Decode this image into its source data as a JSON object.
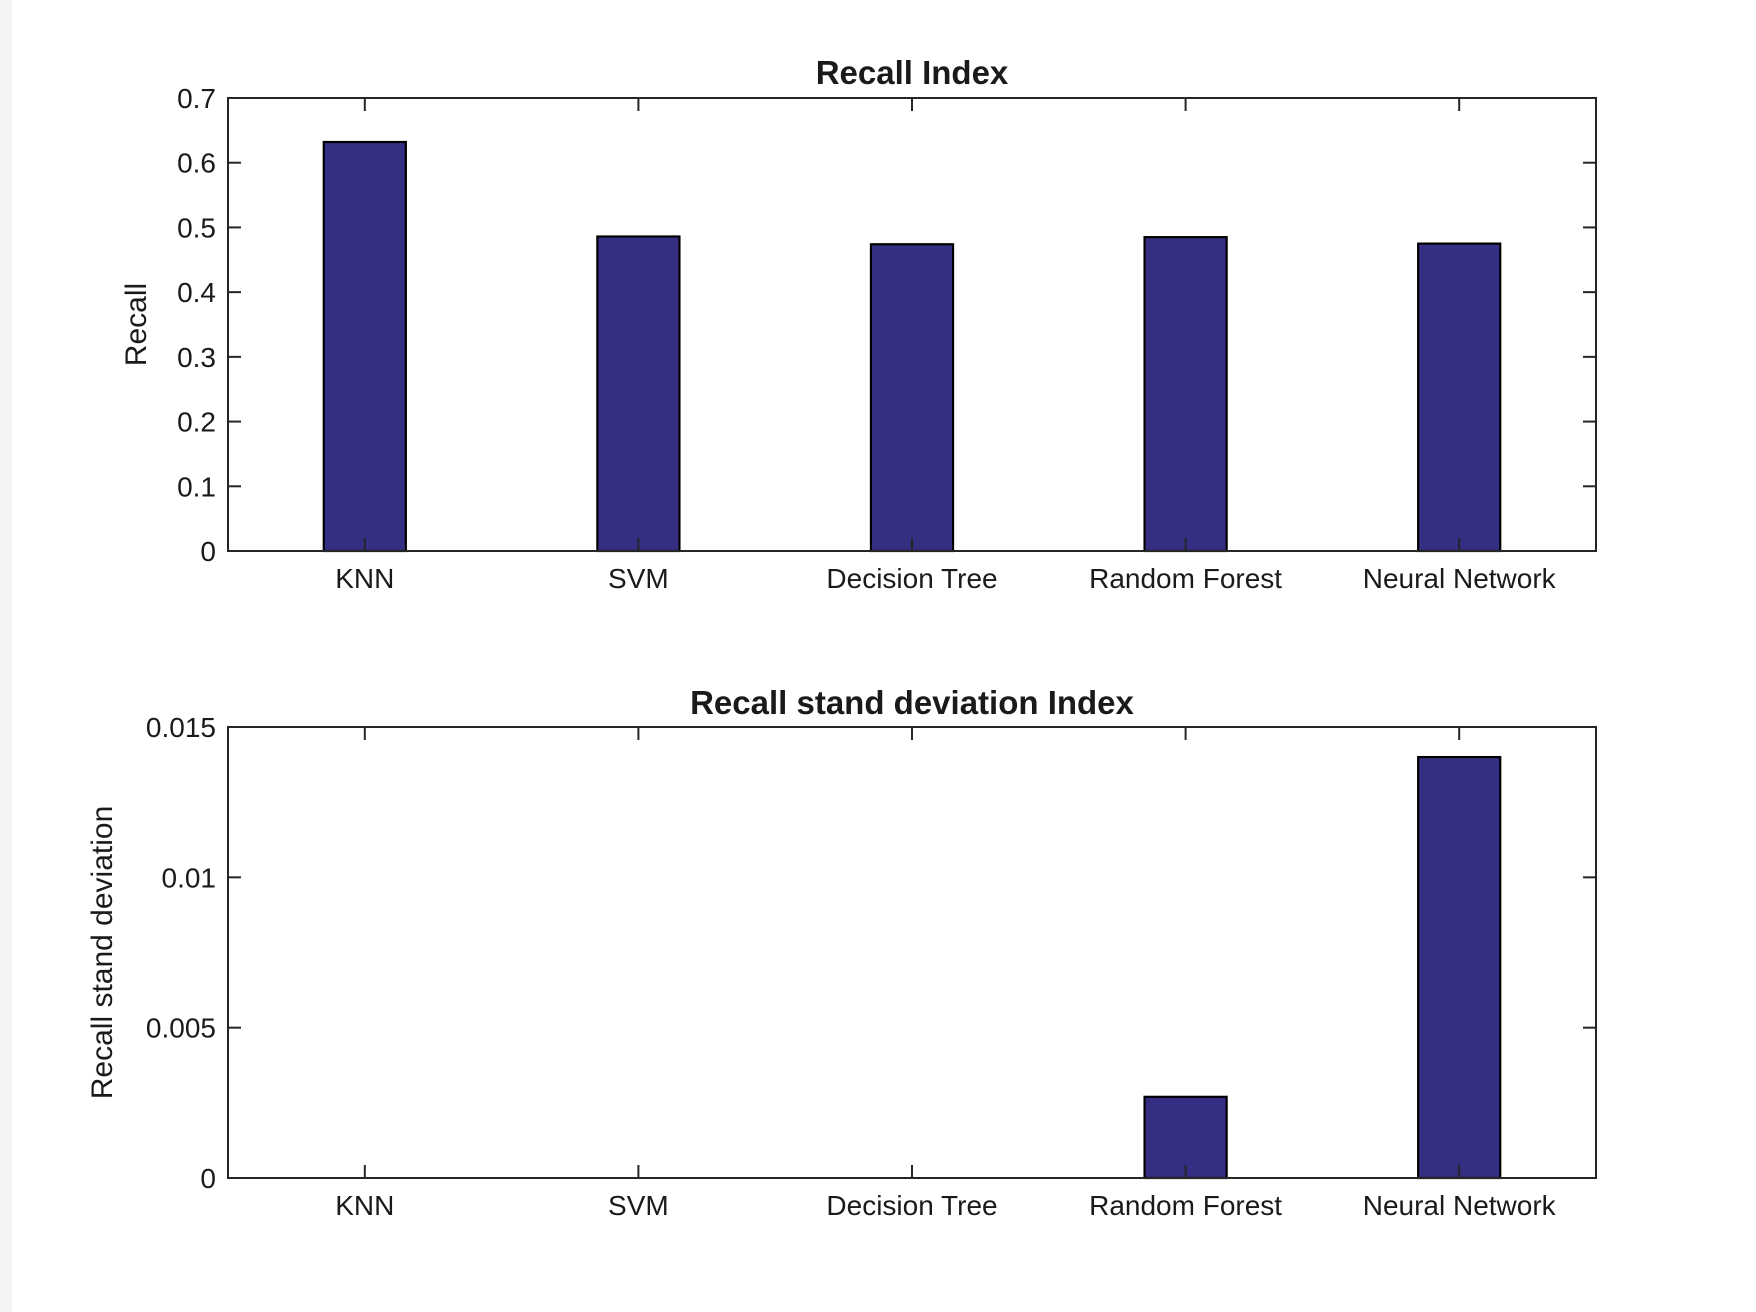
{
  "colors": {
    "bar": "#352F84",
    "axis": "#262626"
  },
  "chart_data": [
    {
      "type": "bar",
      "title": "Recall Index",
      "xlabel": "",
      "ylabel": "Recall",
      "categories": [
        "KNN",
        "SVM",
        "Decision Tree",
        "Random Forest",
        "Neural Network"
      ],
      "values": [
        0.632,
        0.486,
        0.474,
        0.485,
        0.475
      ],
      "ylim": [
        0,
        0.7
      ],
      "yticks": [
        0,
        0.1,
        0.2,
        0.3,
        0.4,
        0.5,
        0.6,
        0.7
      ],
      "ytick_labels": [
        "0",
        "0.1",
        "0.2",
        "0.3",
        "0.4",
        "0.5",
        "0.6",
        "0.7"
      ],
      "grid": false,
      "legend": "none"
    },
    {
      "type": "bar",
      "title": "Recall stand deviation Index",
      "xlabel": "",
      "ylabel": "Recall stand deviation",
      "categories": [
        "KNN",
        "SVM",
        "Decision Tree",
        "Random Forest",
        "Neural Network"
      ],
      "values": [
        0,
        0,
        0,
        0.0027,
        0.014
      ],
      "ylim": [
        0,
        0.015
      ],
      "yticks": [
        0,
        0.005,
        0.01,
        0.015
      ],
      "ytick_labels": [
        "0",
        "0.005",
        "0.01",
        "0.015"
      ],
      "grid": false,
      "legend": "none"
    }
  ]
}
